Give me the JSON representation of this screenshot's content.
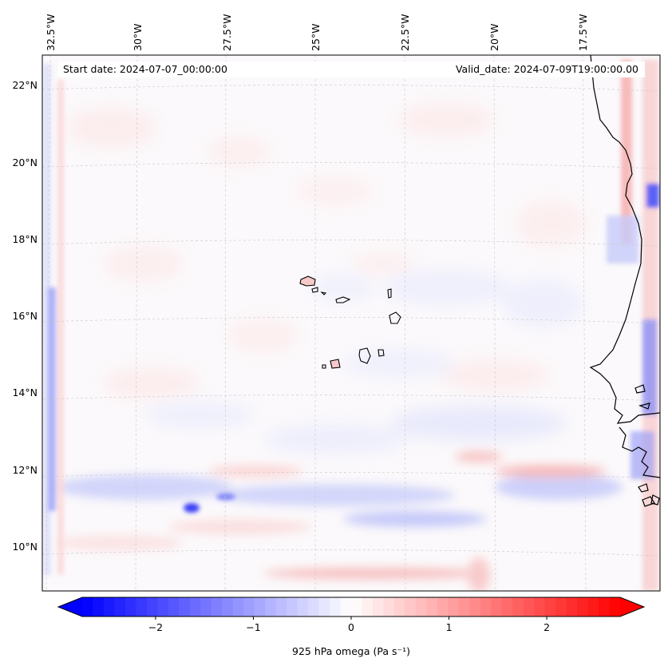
{
  "header": {
    "start_date": "Start date: 2024-07-07_00:00:00",
    "valid_date": "Valid_date: 2024-07-09T19:00:00.00"
  },
  "axes": {
    "longitude_labels": [
      "32.5°W",
      "30°W",
      "27.5°W",
      "25°W",
      "22.5°W",
      "20°W",
      "17.5°W"
    ],
    "latitude_labels": [
      "22°N",
      "20°N",
      "18°N",
      "16°N",
      "14°N",
      "12°N",
      "10°N"
    ]
  },
  "colorbar": {
    "label": "925 hPa omega (Pa s⁻¹)",
    "tick_labels": [
      "−2",
      "−1",
      "0",
      "1",
      "2"
    ],
    "min": -2.75,
    "max": 2.75,
    "ticks": [
      -2,
      -1,
      0,
      1,
      2
    ],
    "colormap": "bwr",
    "neg_color": "#0000ff",
    "mid_color": "#ffffff",
    "pos_color": "#ff0000"
  }
}
